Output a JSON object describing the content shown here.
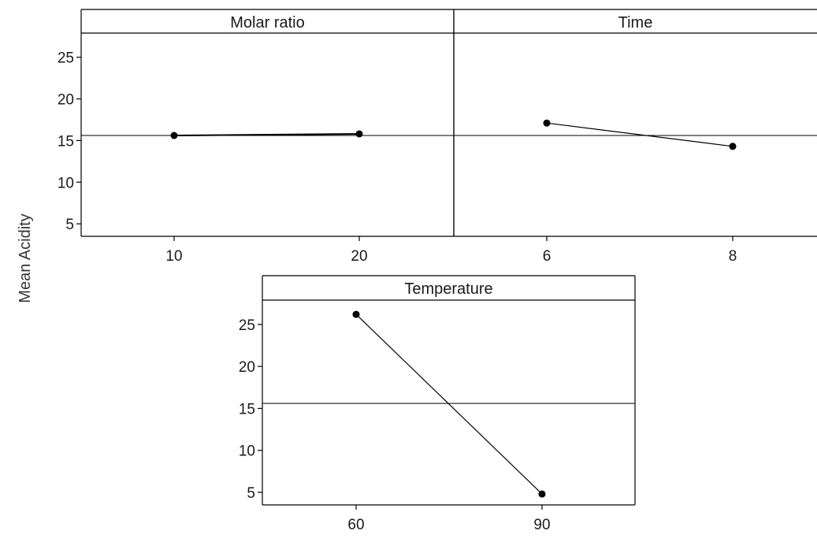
{
  "chart_data": {
    "type": "line",
    "ylabel": "Mean Acidity",
    "ylim": [
      3.5,
      27.9
    ],
    "yticks": [
      5,
      10,
      15,
      20,
      25
    ],
    "grand_mean": 15.6,
    "grid": false,
    "panels": [
      {
        "title": "Molar ratio",
        "x": [
          "10",
          "20"
        ],
        "values": [
          15.6,
          15.8
        ]
      },
      {
        "title": "Time",
        "x": [
          "6",
          "8"
        ],
        "values": [
          17.1,
          14.3
        ]
      },
      {
        "title": "Temperature",
        "x": [
          "60",
          "90"
        ],
        "values": [
          26.2,
          4.8
        ]
      }
    ]
  },
  "colors": {
    "line": "#000000",
    "frame": "#000000"
  }
}
